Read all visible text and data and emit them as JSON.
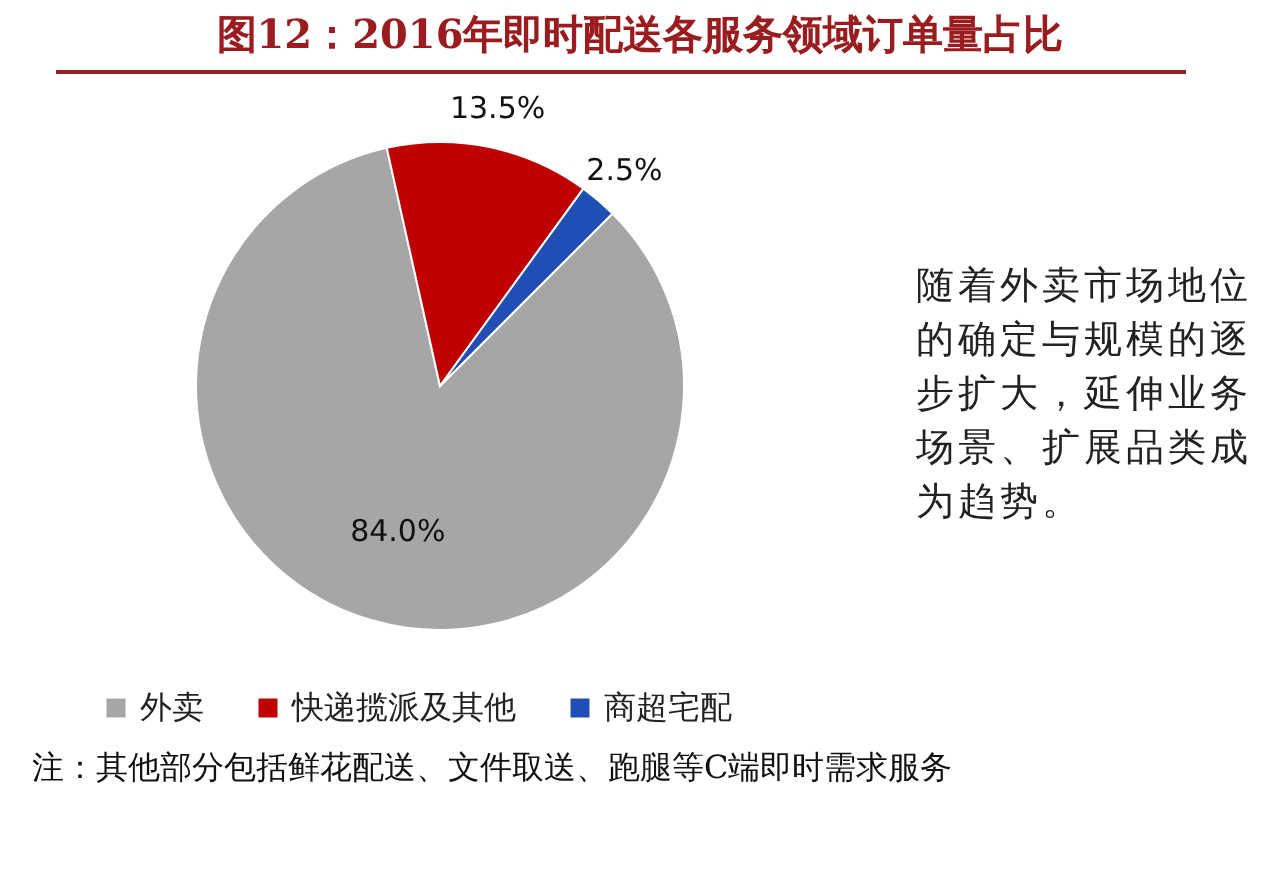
{
  "chart_data": {
    "type": "pie",
    "title": "图12：2016年即时配送各服务领域订单量占比",
    "categories": [
      "外卖",
      "快递揽派及其他",
      "商超宅配"
    ],
    "values": [
      84.0,
      13.5,
      2.5
    ],
    "colors": [
      "#a6a6a6",
      "#c00000",
      "#1f4eb4"
    ],
    "value_labels": [
      "84.0%",
      "13.5%",
      "2.5%"
    ],
    "legend": "bottom",
    "annotations": [
      "随着外卖市场地位的确定与规模的逐步扩大，延伸业务场景、扩展品类成为趋势。",
      "注：其他部分包括鲜花配送、文件取送、跑腿等C端即时需求服务"
    ]
  }
}
